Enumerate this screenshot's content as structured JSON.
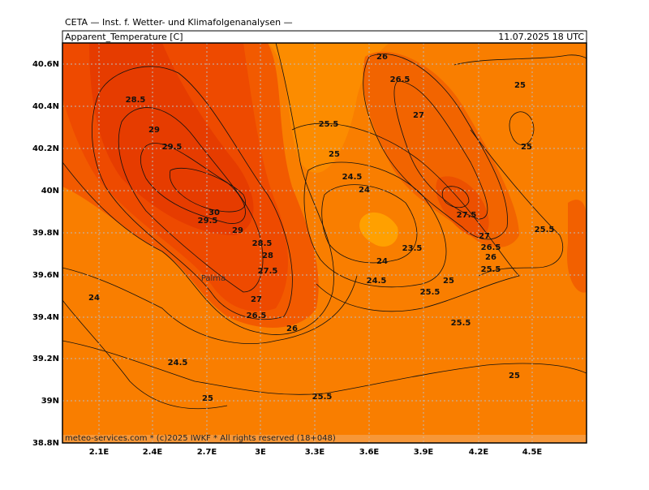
{
  "header": {
    "institute": "CETA — Inst. f. Wetter- und Klimafolgenanalysen —",
    "title": "Apparent_Temperature [C]",
    "datetime": "11.07.2025 18 UTC"
  },
  "map": {
    "lon_ticks": [
      "2.1E",
      "2.4E",
      "2.7E",
      "3E",
      "3.3E",
      "3.6E",
      "3.9E",
      "4.2E",
      "4.5E"
    ],
    "lat_ticks": [
      "40.6N",
      "40.4N",
      "40.2N",
      "40N",
      "39.8N",
      "39.6N",
      "39.4N",
      "39.2N",
      "39N",
      "38.8N"
    ],
    "place": "Palma",
    "contour_labels": [
      "28.5",
      "29",
      "29.5",
      "30",
      "29.5",
      "29",
      "28.5",
      "28",
      "27.5",
      "27",
      "26.5",
      "26",
      "24",
      "24.5",
      "25",
      "25.5",
      "25.5",
      "25",
      "24.5",
      "24",
      "23.5",
      "24",
      "24.5",
      "25",
      "25.5",
      "25.5",
      "25",
      "26",
      "26.5",
      "27",
      "25",
      "25",
      "27.5",
      "27",
      "26.5",
      "26",
      "25.5",
      "25.5"
    ]
  },
  "footer": "meteo-services.com * (c)2025 IWKF * All rights reserved (18+048)"
}
